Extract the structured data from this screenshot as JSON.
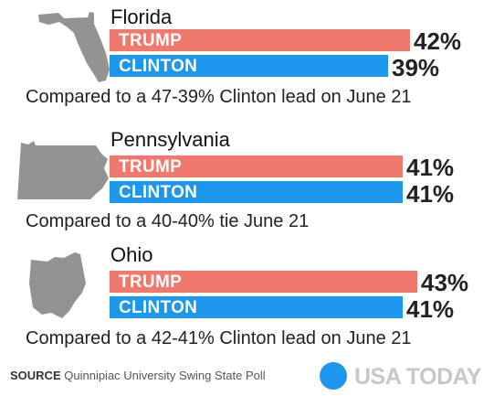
{
  "colors": {
    "trump": "#f0786d",
    "clinton": "#1d97ee",
    "map": "#939393",
    "brand_dot": "#1d97ee"
  },
  "chart_data": {
    "type": "bar",
    "title": "",
    "series_names": [
      "TRUMP",
      "CLINTON"
    ],
    "value_unit": "%",
    "groups": [
      {
        "state": "Florida",
        "icon": "florida-map-icon",
        "values": {
          "TRUMP": 42,
          "CLINTON": 39
        },
        "labels": {
          "TRUMP": "42%",
          "CLINTON": "39%"
        },
        "note": "Compared to a 47-39% Clinton lead on June 21"
      },
      {
        "state": "Pennsylvania",
        "icon": "pennsylvania-map-icon",
        "values": {
          "TRUMP": 41,
          "CLINTON": 41
        },
        "labels": {
          "TRUMP": "41%",
          "CLINTON": "41%"
        },
        "note": "Compared to a 40-40% tie June 21"
      },
      {
        "state": "Ohio",
        "icon": "ohio-map-icon",
        "values": {
          "TRUMP": 43,
          "CLINTON": 41
        },
        "labels": {
          "TRUMP": "43%",
          "CLINTON": "41%"
        },
        "note": "Compared to a 42-41% Clinton lead on June 21"
      }
    ]
  },
  "footer": {
    "source_label": "SOURCE",
    "source_text": "Quinnipiac University Swing State Poll",
    "brand": "USA TODAY",
    "brand_icon": "usa-today-dot-icon"
  }
}
